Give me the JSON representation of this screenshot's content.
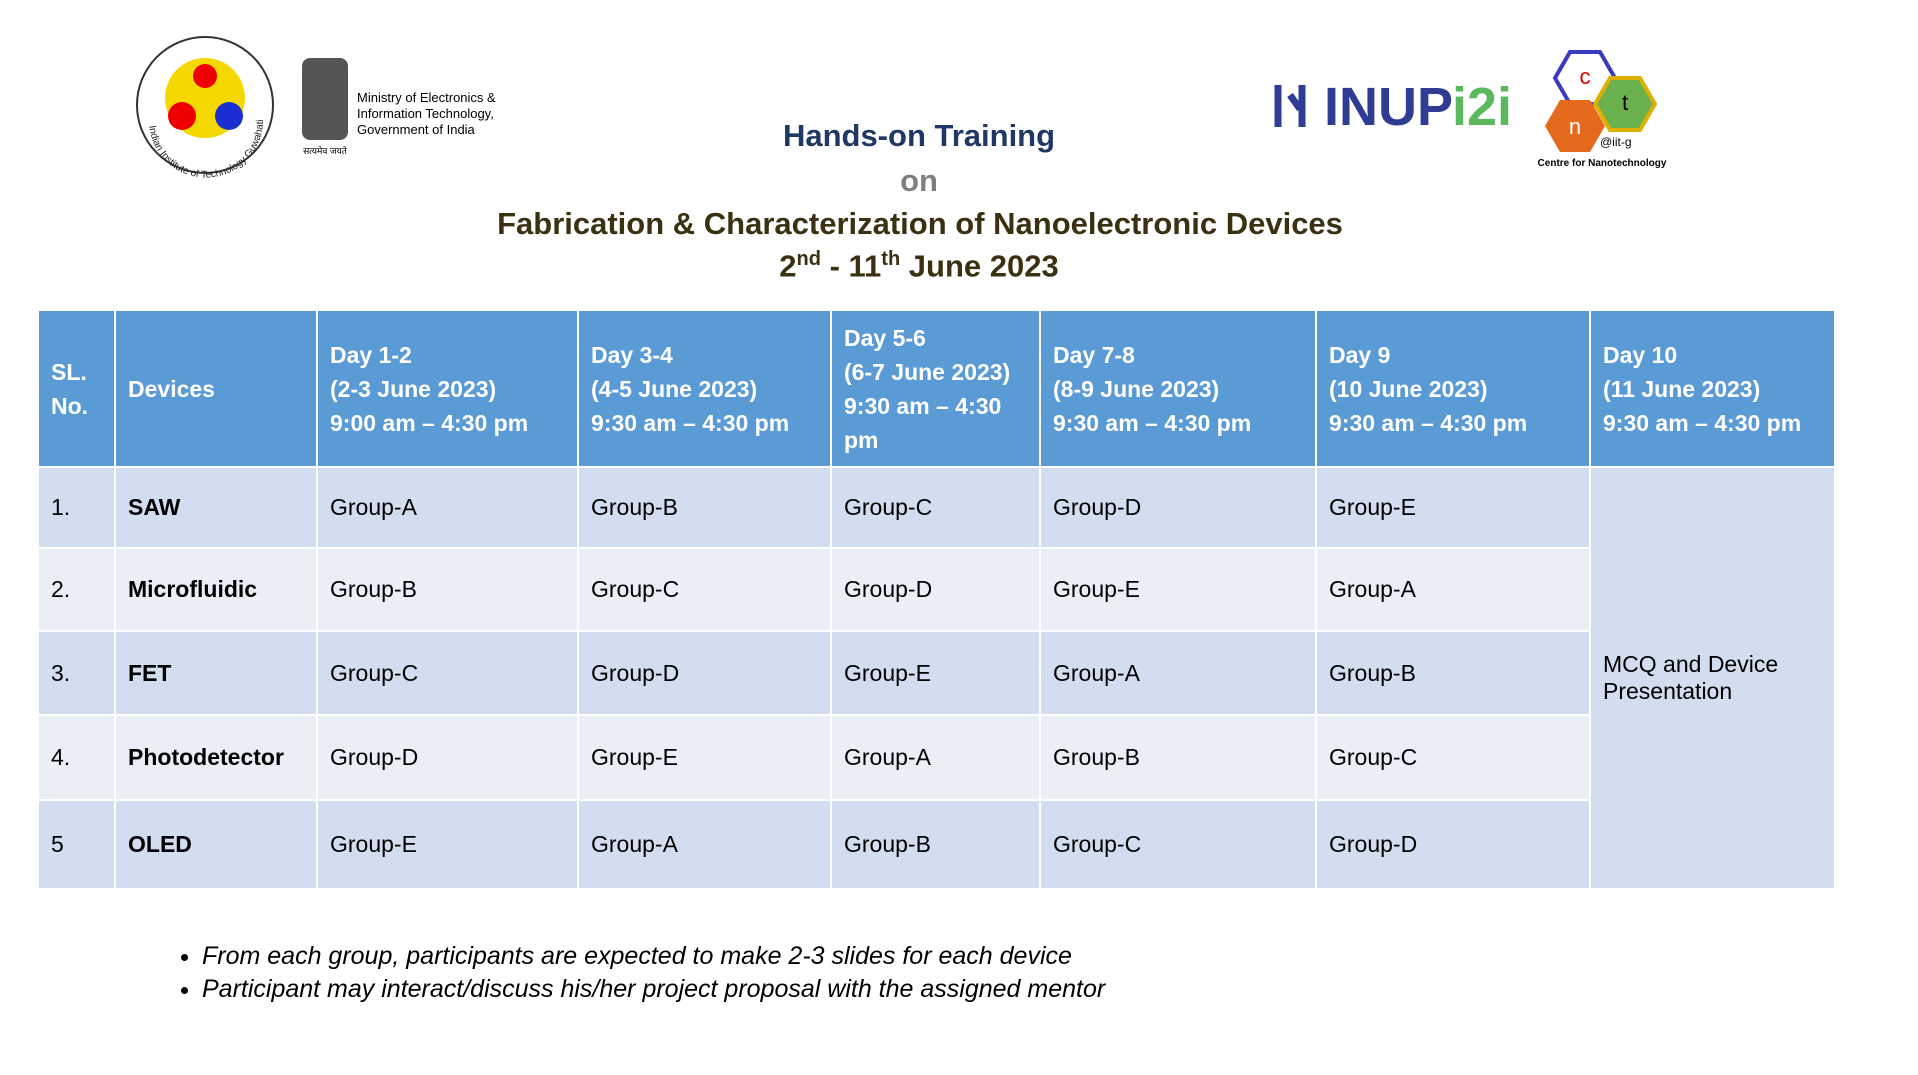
{
  "header": {
    "title": "Hands-on Training",
    "on": "on",
    "subtitle": "Fabrication & Characterization of Nanoelectronic Devices",
    "dates": [
      "2",
      "nd",
      " - 11",
      "th",
      " June 2023"
    ]
  },
  "logos": {
    "iitg": "Indian Institute of Technology Guwahati",
    "emblem_motto": "सत्यमेव जयते",
    "ministry": [
      "Ministry of Electronics &",
      "Information Technology,",
      "Government of India"
    ],
    "inup": "INUP",
    "i2i": "i2i",
    "cnt": [
      "c",
      "n",
      "t"
    ],
    "iitg_tag": "@iit-g",
    "centre": "Centre for Nanotechnology"
  },
  "table": {
    "columns": [
      [
        "SL.",
        "No."
      ],
      [
        "Devices"
      ],
      [
        "Day 1-2",
        "(2-3 June 2023)",
        "9:00 am – 4:30 pm"
      ],
      [
        "Day 3-4",
        "(4-5 June 2023)",
        "9:30 am – 4:30 pm"
      ],
      [
        "Day 5-6",
        "(6-7 June 2023)",
        "9:30 am – 4:30 pm"
      ],
      [
        "Day 7-8",
        "(8-9 June 2023)",
        "9:30 am – 4:30 pm"
      ],
      [
        "Day 9",
        "(10 June 2023)",
        "9:30 am – 4:30 pm"
      ],
      [
        "Day 10",
        "(11 June 2023)",
        "9:30 am – 4:30 pm"
      ]
    ],
    "rows": [
      [
        "1.",
        "SAW",
        "Group-A",
        "Group-B",
        "Group-C",
        "Group-D",
        "Group-E"
      ],
      [
        "2.",
        "Microfluidic",
        "Group-B",
        "Group-C",
        "Group-D",
        "Group-E",
        "Group-A"
      ],
      [
        "3.",
        "FET",
        "Group-C",
        "Group-D",
        "Group-E",
        "Group-A",
        "Group-B"
      ],
      [
        "4.",
        "Photodetector",
        "Group-D",
        "Group-E",
        "Group-A",
        "Group-B",
        "Group-C"
      ],
      [
        "5",
        "OLED",
        "Group-E",
        "Group-A",
        "Group-B",
        "Group-C",
        "Group-D"
      ]
    ],
    "merged_cell": "MCQ and Device Presentation"
  },
  "notes": [
    "From each group, participants are expected to make 2-3 slides for each device",
    "Participant may interact/discuss his/her project proposal with the assigned mentor"
  ]
}
